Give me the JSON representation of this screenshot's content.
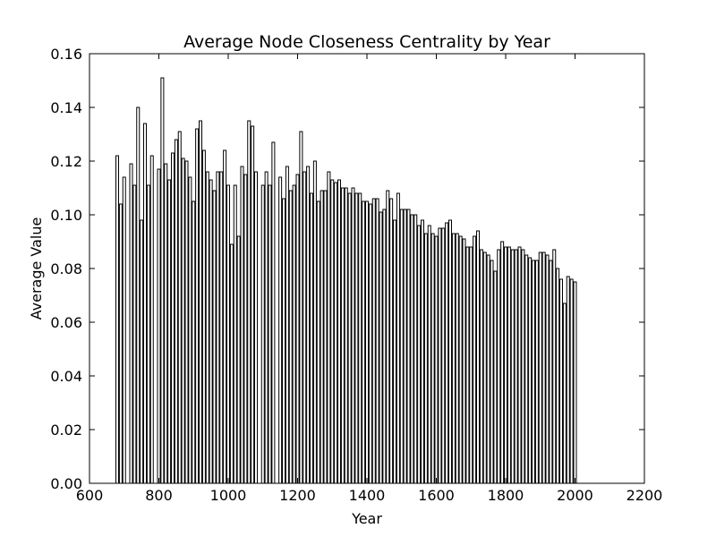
{
  "chart_data": {
    "type": "bar",
    "title": "Average Node Closeness Centrality by Year",
    "xlabel": "Year",
    "ylabel": "Average Value",
    "xlim": [
      600,
      2200
    ],
    "ylim": [
      0,
      0.16
    ],
    "xticks": [
      600,
      800,
      1000,
      1200,
      1400,
      1600,
      1800,
      2000,
      2200
    ],
    "yticks": [
      0.0,
      0.02,
      0.04,
      0.06,
      0.08,
      0.1,
      0.12,
      0.14,
      0.16
    ],
    "xtick_labels": [
      "600",
      "800",
      "1000",
      "1200",
      "1400",
      "1600",
      "1800",
      "2000",
      "2200"
    ],
    "ytick_labels": [
      "0.00",
      "0.02",
      "0.04",
      "0.06",
      "0.08",
      "0.10",
      "0.12",
      "0.14",
      "0.16"
    ],
    "grid": false,
    "bar_color": "#ffffff",
    "edge_color": "#000000",
    "points": [
      {
        "x": 680,
        "y": 0.122
      },
      {
        "x": 690,
        "y": 0.104
      },
      {
        "x": 700,
        "y": 0.114
      },
      {
        "x": 720,
        "y": 0.119
      },
      {
        "x": 730,
        "y": 0.111
      },
      {
        "x": 740,
        "y": 0.14
      },
      {
        "x": 750,
        "y": 0.098
      },
      {
        "x": 760,
        "y": 0.134
      },
      {
        "x": 770,
        "y": 0.111
      },
      {
        "x": 780,
        "y": 0.122
      },
      {
        "x": 800,
        "y": 0.117
      },
      {
        "x": 810,
        "y": 0.151
      },
      {
        "x": 820,
        "y": 0.119
      },
      {
        "x": 830,
        "y": 0.113
      },
      {
        "x": 840,
        "y": 0.123
      },
      {
        "x": 850,
        "y": 0.128
      },
      {
        "x": 860,
        "y": 0.131
      },
      {
        "x": 870,
        "y": 0.121
      },
      {
        "x": 880,
        "y": 0.12
      },
      {
        "x": 890,
        "y": 0.114
      },
      {
        "x": 900,
        "y": 0.105
      },
      {
        "x": 910,
        "y": 0.132
      },
      {
        "x": 920,
        "y": 0.135
      },
      {
        "x": 930,
        "y": 0.124
      },
      {
        "x": 940,
        "y": 0.116
      },
      {
        "x": 950,
        "y": 0.113
      },
      {
        "x": 960,
        "y": 0.109
      },
      {
        "x": 970,
        "y": 0.116
      },
      {
        "x": 980,
        "y": 0.116
      },
      {
        "x": 990,
        "y": 0.124
      },
      {
        "x": 1000,
        "y": 0.111
      },
      {
        "x": 1010,
        "y": 0.089
      },
      {
        "x": 1020,
        "y": 0.111
      },
      {
        "x": 1030,
        "y": 0.092
      },
      {
        "x": 1040,
        "y": 0.118
      },
      {
        "x": 1050,
        "y": 0.115
      },
      {
        "x": 1060,
        "y": 0.135
      },
      {
        "x": 1070,
        "y": 0.133
      },
      {
        "x": 1080,
        "y": 0.116
      },
      {
        "x": 1100,
        "y": 0.111
      },
      {
        "x": 1110,
        "y": 0.116
      },
      {
        "x": 1120,
        "y": 0.111
      },
      {
        "x": 1130,
        "y": 0.127
      },
      {
        "x": 1150,
        "y": 0.114
      },
      {
        "x": 1160,
        "y": 0.106
      },
      {
        "x": 1170,
        "y": 0.118
      },
      {
        "x": 1180,
        "y": 0.109
      },
      {
        "x": 1190,
        "y": 0.111
      },
      {
        "x": 1200,
        "y": 0.115
      },
      {
        "x": 1210,
        "y": 0.131
      },
      {
        "x": 1220,
        "y": 0.116
      },
      {
        "x": 1230,
        "y": 0.118
      },
      {
        "x": 1240,
        "y": 0.108
      },
      {
        "x": 1250,
        "y": 0.12
      },
      {
        "x": 1260,
        "y": 0.105
      },
      {
        "x": 1270,
        "y": 0.109
      },
      {
        "x": 1280,
        "y": 0.109
      },
      {
        "x": 1290,
        "y": 0.116
      },
      {
        "x": 1300,
        "y": 0.113
      },
      {
        "x": 1310,
        "y": 0.112
      },
      {
        "x": 1320,
        "y": 0.113
      },
      {
        "x": 1330,
        "y": 0.11
      },
      {
        "x": 1340,
        "y": 0.11
      },
      {
        "x": 1350,
        "y": 0.108
      },
      {
        "x": 1360,
        "y": 0.11
      },
      {
        "x": 1370,
        "y": 0.108
      },
      {
        "x": 1380,
        "y": 0.108
      },
      {
        "x": 1390,
        "y": 0.105
      },
      {
        "x": 1400,
        "y": 0.105
      },
      {
        "x": 1410,
        "y": 0.104
      },
      {
        "x": 1420,
        "y": 0.106
      },
      {
        "x": 1430,
        "y": 0.106
      },
      {
        "x": 1440,
        "y": 0.101
      },
      {
        "x": 1450,
        "y": 0.102
      },
      {
        "x": 1460,
        "y": 0.109
      },
      {
        "x": 1470,
        "y": 0.106
      },
      {
        "x": 1480,
        "y": 0.098
      },
      {
        "x": 1490,
        "y": 0.108
      },
      {
        "x": 1500,
        "y": 0.102
      },
      {
        "x": 1510,
        "y": 0.102
      },
      {
        "x": 1520,
        "y": 0.102
      },
      {
        "x": 1530,
        "y": 0.1
      },
      {
        "x": 1540,
        "y": 0.1
      },
      {
        "x": 1550,
        "y": 0.096
      },
      {
        "x": 1560,
        "y": 0.098
      },
      {
        "x": 1570,
        "y": 0.093
      },
      {
        "x": 1580,
        "y": 0.096
      },
      {
        "x": 1590,
        "y": 0.093
      },
      {
        "x": 1600,
        "y": 0.092
      },
      {
        "x": 1610,
        "y": 0.095
      },
      {
        "x": 1620,
        "y": 0.095
      },
      {
        "x": 1630,
        "y": 0.097
      },
      {
        "x": 1640,
        "y": 0.098
      },
      {
        "x": 1650,
        "y": 0.093
      },
      {
        "x": 1660,
        "y": 0.093
      },
      {
        "x": 1670,
        "y": 0.092
      },
      {
        "x": 1680,
        "y": 0.091
      },
      {
        "x": 1690,
        "y": 0.088
      },
      {
        "x": 1700,
        "y": 0.088
      },
      {
        "x": 1710,
        "y": 0.092
      },
      {
        "x": 1720,
        "y": 0.094
      },
      {
        "x": 1730,
        "y": 0.087
      },
      {
        "x": 1740,
        "y": 0.086
      },
      {
        "x": 1750,
        "y": 0.085
      },
      {
        "x": 1760,
        "y": 0.083
      },
      {
        "x": 1770,
        "y": 0.079
      },
      {
        "x": 1780,
        "y": 0.087
      },
      {
        "x": 1790,
        "y": 0.09
      },
      {
        "x": 1800,
        "y": 0.088
      },
      {
        "x": 1810,
        "y": 0.088
      },
      {
        "x": 1820,
        "y": 0.087
      },
      {
        "x": 1830,
        "y": 0.087
      },
      {
        "x": 1840,
        "y": 0.088
      },
      {
        "x": 1850,
        "y": 0.087
      },
      {
        "x": 1860,
        "y": 0.085
      },
      {
        "x": 1870,
        "y": 0.084
      },
      {
        "x": 1880,
        "y": 0.083
      },
      {
        "x": 1890,
        "y": 0.083
      },
      {
        "x": 1900,
        "y": 0.086
      },
      {
        "x": 1910,
        "y": 0.086
      },
      {
        "x": 1920,
        "y": 0.085
      },
      {
        "x": 1930,
        "y": 0.083
      },
      {
        "x": 1940,
        "y": 0.087
      },
      {
        "x": 1950,
        "y": 0.08
      },
      {
        "x": 1960,
        "y": 0.076
      },
      {
        "x": 1970,
        "y": 0.067
      },
      {
        "x": 1980,
        "y": 0.077
      },
      {
        "x": 1990,
        "y": 0.076
      },
      {
        "x": 2000,
        "y": 0.075
      }
    ]
  }
}
